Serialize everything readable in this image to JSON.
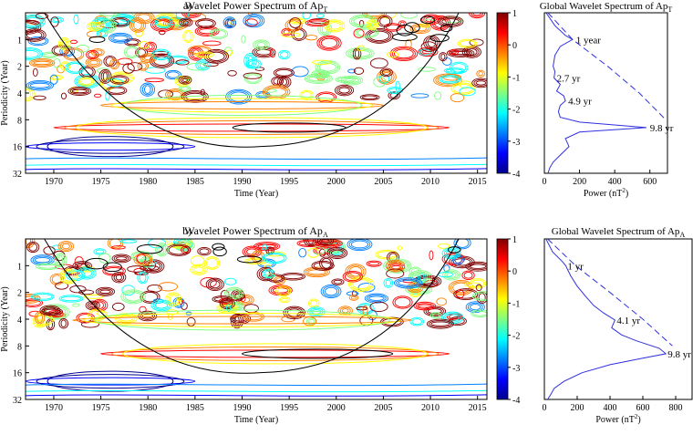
{
  "chart_data": [
    {
      "type": "heatmap",
      "panel": "a)",
      "title": "Wavelet Power Spectrum of Ap",
      "title_sub": "T",
      "xlabel": "Time (Year)",
      "ylabel": "Periodicity (Year)",
      "xlim": [
        1967,
        2016
      ],
      "ylim": [
        0.5,
        32
      ],
      "y_scale": "log2",
      "x_ticks": [
        "1970",
        "1975",
        "1980",
        "1985",
        "1990",
        "1995",
        "2000",
        "2005",
        "2010",
        "2015"
      ],
      "y_ticks": [
        "1",
        "2",
        "4",
        "8",
        "16",
        "32"
      ],
      "colorbar": {
        "range": [
          -4,
          1
        ],
        "ticks": [
          "1",
          "0",
          "-1",
          "-2",
          "-3",
          "-4"
        ],
        "colors": [
          "#00008f",
          "#0000ff",
          "#007fff",
          "#00ffff",
          "#7fff7f",
          "#ffff00",
          "#ff7f00",
          "#ff0000",
          "#7f0000"
        ]
      },
      "band_contours": [
        {
          "period": 9.8,
          "x_start": 1970,
          "x_end": 2012,
          "level": 0.6,
          "color": "#ff0000"
        },
        {
          "period": 16,
          "x_start": 1967,
          "x_end": 1985,
          "level": -3,
          "color": "#0000ff"
        },
        {
          "period": 5.5,
          "x_start": 1975,
          "x_end": 2005,
          "level": -1,
          "color": "#ff7f00"
        }
      ],
      "significant_regions": [
        {
          "x_center": 1995,
          "period": 9.8,
          "x_half_width": 6
        }
      ],
      "cone_of_influence": true
    },
    {
      "type": "line",
      "title": "Global Wavelet Spectrum of Ap",
      "title_sub": "T",
      "xlabel": "Power (nT",
      "xlabel_sup": "2",
      "xlabel_end": ")",
      "xlim": [
        0,
        700
      ],
      "x_ticks": [
        "0",
        "200",
        "400",
        "600"
      ],
      "ylim": [
        0.5,
        32
      ],
      "series": [
        {
          "name": "",
          "style": "solid",
          "period": [
            0.5,
            0.7,
            0.9,
            1,
            1.2,
            1.5,
            2,
            2.3,
            2.7,
            3.2,
            3.8,
            4.3,
            4.9,
            5.5,
            6.5,
            7.5,
            8.5,
            9.8,
            11,
            13,
            16,
            20,
            24,
            28,
            32
          ],
          "power": [
            10,
            60,
            120,
            160,
            90,
            60,
            50,
            60,
            55,
            90,
            70,
            110,
            120,
            90,
            80,
            90,
            200,
            580,
            200,
            120,
            140,
            90,
            50,
            30,
            20
          ]
        },
        {
          "name": "",
          "style": "dashed",
          "period": [
            0.5,
            1,
            2,
            4,
            8
          ],
          "power": [
            20,
            160,
            360,
            540,
            690
          ]
        }
      ],
      "annotations": [
        {
          "text": "1 year",
          "period": 1.0,
          "power": 170
        },
        {
          "text": "2.7 yr",
          "period": 2.7,
          "power": 60
        },
        {
          "text": "4.9 yr",
          "period": 4.9,
          "power": 125
        },
        {
          "text": "9.8 yr",
          "period": 9.8,
          "power": 590
        }
      ]
    },
    {
      "type": "heatmap",
      "panel": "b)",
      "title": "Wavelet Power Spectrum of Ap",
      "title_sub": "A",
      "xlabel": "Time (Year)",
      "ylabel": "Periodicity (Year)",
      "xlim": [
        1967,
        2016
      ],
      "ylim": [
        0.5,
        32
      ],
      "y_scale": "log2",
      "x_ticks": [
        "1970",
        "1975",
        "1980",
        "1985",
        "1990",
        "1995",
        "2000",
        "2005",
        "2010",
        "2015"
      ],
      "y_ticks": [
        "1",
        "2",
        "4",
        "8",
        "16",
        "32"
      ],
      "colorbar": {
        "range": [
          -4,
          1
        ],
        "ticks": [
          "1",
          "0",
          "-1",
          "-2",
          "-3",
          "-4"
        ],
        "colors": [
          "#00008f",
          "#0000ff",
          "#007fff",
          "#00ffff",
          "#7fff7f",
          "#ffff00",
          "#ff7f00",
          "#ff0000",
          "#7f0000"
        ]
      },
      "band_contours": [
        {
          "period": 9.8,
          "x_start": 1975,
          "x_end": 2012,
          "level": 0.6,
          "color": "#ff0000"
        },
        {
          "period": 4.1,
          "x_start": 1972,
          "x_end": 2008,
          "level": -0.5,
          "color": "#ff7f00"
        },
        {
          "period": 20,
          "x_start": 1967,
          "x_end": 1985,
          "level": -3,
          "color": "#0000ff"
        }
      ],
      "significant_regions": [
        {
          "x_center": 1998,
          "period": 9.8,
          "x_half_width": 8
        }
      ],
      "cone_of_influence": true
    },
    {
      "type": "line",
      "title": "Global Wavelet Spectrum of Ap",
      "title_sub": "A",
      "xlabel": "Power (nT",
      "xlabel_sup": "2",
      "xlabel_end": ")",
      "xlim": [
        0,
        900
      ],
      "x_ticks": [
        "0",
        "200",
        "400",
        "600",
        "800"
      ],
      "ylim": [
        0.5,
        32
      ],
      "series": [
        {
          "name": "",
          "style": "solid",
          "period": [
            0.5,
            0.7,
            0.9,
            1,
            1.3,
            1.7,
            2.2,
            2.8,
            3.4,
            4.1,
            5,
            6,
            7,
            8.5,
            9.8,
            11,
            13,
            16,
            20,
            24,
            28,
            32
          ],
          "power": [
            10,
            50,
            110,
            130,
            160,
            200,
            250,
            300,
            360,
            430,
            410,
            470,
            560,
            700,
            740,
            600,
            400,
            230,
            120,
            60,
            40,
            20
          ]
        },
        {
          "name": "",
          "style": "dashed",
          "period": [
            0.5,
            1,
            2,
            4,
            8
          ],
          "power": [
            20,
            190,
            400,
            600,
            780
          ]
        }
      ],
      "annotations": [
        {
          "text": "1 yr",
          "period": 1.0,
          "power": 130
        },
        {
          "text": "4.1 yr",
          "period": 4.1,
          "power": 430
        },
        {
          "text": "9.8 yr",
          "period": 9.8,
          "power": 740
        }
      ]
    }
  ]
}
